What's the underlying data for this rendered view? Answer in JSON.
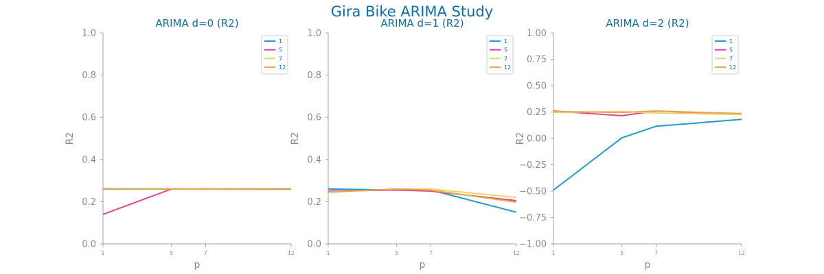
{
  "figure": {
    "title": "Gira Bike ARIMA Study"
  },
  "colors": {
    "axis": "#a0a0a0",
    "tick_text": "#8c8c8c",
    "title": "#0b6fb0",
    "legend_text": "#0b6fb0"
  },
  "chart_data": [
    {
      "type": "line",
      "title": "ARIMA d=0 (R2)",
      "xlabel": "p",
      "ylabel": "R2",
      "x": [
        1,
        5,
        7,
        12
      ],
      "xlim": [
        1,
        12
      ],
      "ylim": [
        0,
        1
      ],
      "yticks": [
        0.0,
        0.2,
        0.4,
        0.6,
        0.8,
        1.0
      ],
      "ytick_labels": [
        "0.0",
        "0.2",
        "0.4",
        "0.6",
        "0.8",
        "1.0"
      ],
      "xtick_labels": [
        "1",
        "5",
        "7",
        "12"
      ],
      "legend": "top-right",
      "grid": false,
      "series": [
        {
          "name": "1",
          "color": "#1f9bd1",
          "values": [
            0.26,
            0.26,
            0.26,
            0.26
          ]
        },
        {
          "name": "5",
          "color": "#e0449a",
          "values": [
            0.14,
            0.26,
            0.26,
            0.26
          ]
        },
        {
          "name": "7",
          "color": "#f2d26a",
          "values": [
            0.262,
            0.261,
            0.261,
            0.262
          ]
        },
        {
          "name": "12",
          "color": "#e3aa4e",
          "values": [
            0.261,
            0.26,
            0.26,
            0.261
          ]
        }
      ]
    },
    {
      "type": "line",
      "title": "ARIMA d=1 (R2)",
      "xlabel": "p",
      "ylabel": "R2",
      "x": [
        1,
        5,
        7,
        12
      ],
      "xlim": [
        1,
        12
      ],
      "ylim": [
        0,
        1
      ],
      "yticks": [
        0.0,
        0.2,
        0.4,
        0.6,
        0.8,
        1.0
      ],
      "ytick_labels": [
        "0.0",
        "0.2",
        "0.4",
        "0.6",
        "0.8",
        "1.0"
      ],
      "xtick_labels": [
        "1",
        "5",
        "7",
        "12"
      ],
      "legend": "top-right",
      "grid": false,
      "series": [
        {
          "name": "1",
          "color": "#1f9bd1",
          "values": [
            0.26,
            0.255,
            0.255,
            0.15
          ]
        },
        {
          "name": "5",
          "color": "#e0449a",
          "values": [
            0.25,
            0.255,
            0.25,
            0.205
          ]
        },
        {
          "name": "7",
          "color": "#f2d26a",
          "values": [
            0.245,
            0.26,
            0.26,
            0.22
          ]
        },
        {
          "name": "12",
          "color": "#e3aa4e",
          "values": [
            0.245,
            0.26,
            0.255,
            0.197
          ]
        }
      ]
    },
    {
      "type": "line",
      "title": "ARIMA d=2 (R2)",
      "xlabel": "p",
      "ylabel": "R2",
      "x": [
        1,
        5,
        7,
        12
      ],
      "xlim": [
        1,
        12
      ],
      "ylim": [
        -1,
        1
      ],
      "yticks": [
        -1.0,
        -0.75,
        -0.5,
        -0.25,
        0.0,
        0.25,
        0.5,
        0.75,
        1.0
      ],
      "ytick_labels": [
        "−1.00",
        "−0.75",
        "−0.50",
        "−0.25",
        "0.00",
        "0.25",
        "0.50",
        "0.75",
        "1.00"
      ],
      "xtick_labels": [
        "1",
        "5",
        "7",
        "12"
      ],
      "legend": "top-right",
      "grid": false,
      "series": [
        {
          "name": "1",
          "color": "#1f9bd1",
          "values": [
            -0.49,
            0.005,
            0.115,
            0.18
          ]
        },
        {
          "name": "5",
          "color": "#e0449a",
          "values": [
            0.26,
            0.215,
            0.26,
            0.225
          ]
        },
        {
          "name": "7",
          "color": "#f2d26a",
          "values": [
            0.245,
            0.255,
            0.24,
            0.225
          ]
        },
        {
          "name": "12",
          "color": "#e3aa4e",
          "values": [
            0.255,
            0.245,
            0.26,
            0.235
          ]
        }
      ]
    }
  ]
}
